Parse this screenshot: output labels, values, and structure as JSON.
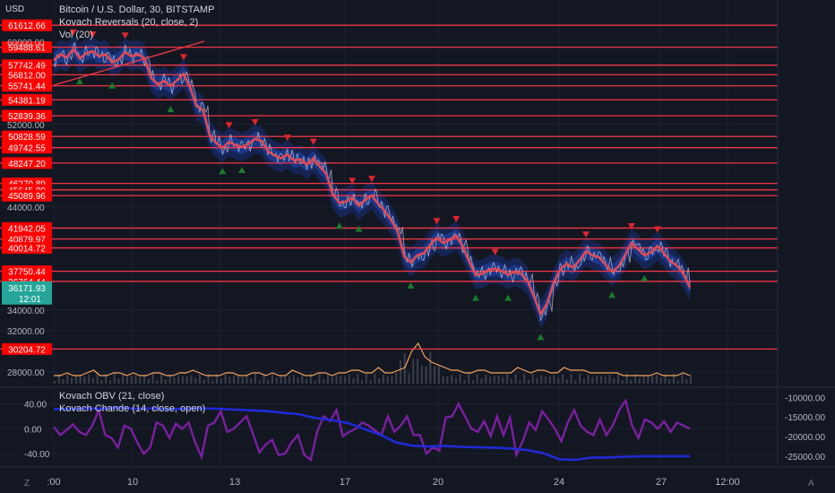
{
  "header": {
    "currency": "USD",
    "title": "Bitcoin / U.S. Dollar, 30, BITSTAMP",
    "indicator_1": "Kovach Reversals (20, close, 2)",
    "indicator_2": "Vol (20)",
    "lower_indicator_1": "Kovach OBV (21, close)",
    "lower_indicator_2": "Kovach Chande (14, close, open)"
  },
  "footer": {
    "left_icon": "Z",
    "right_icon": "A"
  },
  "colors": {
    "background": "#131722",
    "level_line": "#f23645",
    "level_badge": "#ff0000",
    "current_badge": "#26a69a",
    "price_line": "#e04a55",
    "band": "#2962ff",
    "up_arrow": "#1b7a2a",
    "down_arrow": "#e0242c",
    "obv": "#1f2ad6",
    "chande": "#7b1fa2",
    "volume_ma": "#f5a25d"
  },
  "chart_data": {
    "type": "line",
    "price_axis": {
      "ticks": [
        "60000.00",
        "52000.00",
        "44000.00",
        "34000.00",
        "32000.00",
        "28000.00"
      ],
      "range": [
        26500,
        62500
      ]
    },
    "time_axis": {
      "ticks": [
        ":00",
        "10",
        "13",
        "17",
        "20",
        "24",
        "27",
        "12:00"
      ]
    },
    "level_labels": [
      "61612.66",
      "59488.61",
      "57742.49",
      "56812.00",
      "55741.44",
      "54381.19",
      "52839.36",
      "50828.59",
      "49742.55",
      "48247.20",
      "46270.89",
      "45645.80",
      "45089.96",
      "41942.05",
      "40879.97",
      "40014.72",
      "37750.44",
      "36764.44",
      "30204.72"
    ],
    "current_price": {
      "price": "36171.93",
      "countdown": "12:01"
    },
    "price_series": [
      58200,
      58800,
      58500,
      59300,
      58400,
      58900,
      59100,
      58600,
      58800,
      58000,
      58300,
      59000,
      58600,
      58800,
      58400,
      56500,
      55900,
      56200,
      55700,
      56300,
      56900,
      55600,
      53800,
      53400,
      51000,
      50200,
      49700,
      50300,
      50000,
      49800,
      50100,
      50600,
      50400,
      49400,
      49000,
      48700,
      49100,
      48500,
      48600,
      48100,
      48700,
      47900,
      47200,
      45200,
      44400,
      44500,
      44900,
      44100,
      44700,
      45100,
      44300,
      43600,
      42700,
      41600,
      39200,
      38600,
      39300,
      39500,
      40300,
      41000,
      40500,
      40800,
      41200,
      40200,
      38700,
      37400,
      37500,
      37900,
      38000,
      37800,
      37400,
      37700,
      37500,
      36800,
      35300,
      33600,
      34600,
      36600,
      37900,
      38500,
      38100,
      38800,
      39700,
      39300,
      39100,
      38400,
      37700,
      38200,
      39300,
      40500,
      39900,
      39300,
      39600,
      40200,
      39500,
      38700,
      38300,
      37500,
      36200
    ],
    "lower_panel": {
      "left_axis": [
        "40.00",
        "0.00",
        "-40.00"
      ],
      "left_range": [
        -60,
        58
      ],
      "right_axis": [
        "-10000.00",
        "-15000.00",
        "-20000.00",
        "-25000.00"
      ],
      "right_range": [
        -27500,
        -8800
      ],
      "obv_series": [
        -13000,
        -13000,
        -12800,
        -12900,
        -12600,
        -12900,
        -12800,
        -13000,
        -12900,
        -12800,
        -12900,
        -13100,
        -13300,
        -13500,
        -13900,
        -14300,
        -15200,
        -15800,
        -16500,
        -18000,
        -19500,
        -21500,
        -22300,
        -22500,
        -22400,
        -22600,
        -22700,
        -22800,
        -23000,
        -23400,
        -24200,
        -25800,
        -25900,
        -25300,
        -25300,
        -25100,
        -25000,
        -25000,
        -25000,
        -25000
      ],
      "chande_series": [
        3,
        -10,
        -2,
        7,
        -5,
        -10,
        5,
        30,
        -10,
        -15,
        -30,
        5,
        0,
        -22,
        -40,
        -30,
        10,
        5,
        -15,
        8,
        0,
        10,
        -22,
        -45,
        5,
        10,
        28,
        -5,
        0,
        10,
        20,
        -8,
        -38,
        -25,
        -18,
        -42,
        -40,
        -22,
        -10,
        -42,
        -50,
        -5,
        20,
        12,
        30,
        -12,
        -5,
        0,
        10,
        5,
        -3,
        -10,
        20,
        -5,
        5,
        20,
        -10,
        -10,
        -40,
        -30,
        -35,
        18,
        20,
        40,
        20,
        0,
        -5,
        12,
        -12,
        20,
        -10,
        18,
        -42,
        -20,
        10,
        -2,
        28,
        15,
        0,
        -20,
        10,
        30,
        5,
        -5,
        -10,
        15,
        -10,
        5,
        30,
        45,
        5,
        -15,
        15,
        10,
        0,
        12,
        -5,
        10,
        5,
        0
      ],
      "volume_ma_series": [
        3,
        3,
        4,
        3,
        3,
        4,
        5,
        3,
        3,
        4,
        4,
        3,
        4,
        3,
        3,
        4,
        4,
        3,
        3,
        4,
        4,
        5,
        4,
        3,
        3,
        3,
        4,
        4,
        3,
        3,
        4,
        4,
        3,
        4,
        3,
        3,
        5,
        4,
        3,
        3,
        4,
        4,
        3,
        4,
        4,
        5,
        5,
        4,
        4,
        6,
        4,
        4,
        5,
        6,
        12,
        15,
        10,
        8,
        7,
        6,
        5,
        5,
        4,
        4,
        5,
        5,
        4,
        4,
        4,
        4,
        6,
        5,
        4,
        5,
        5,
        4,
        4,
        6,
        5,
        5,
        5,
        4,
        4,
        4,
        4,
        4,
        3,
        3,
        3,
        3,
        3,
        4,
        3,
        3,
        3,
        4,
        3
      ]
    }
  }
}
